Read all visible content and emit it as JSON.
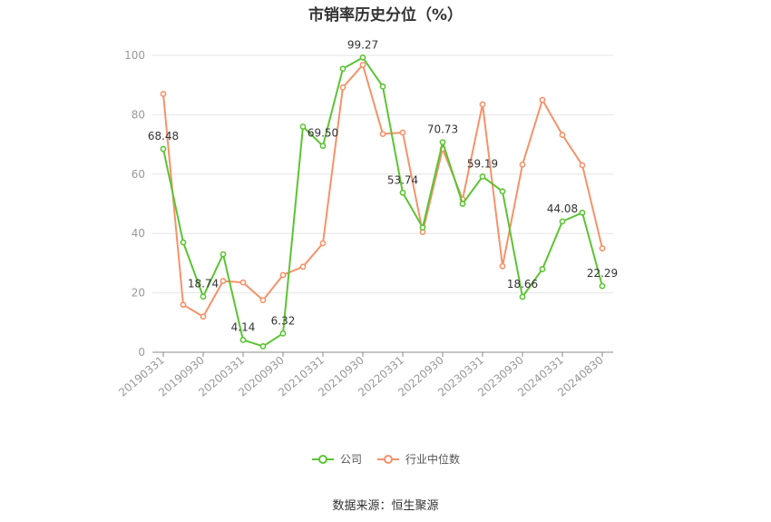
{
  "title": "市销率历史分位（%）",
  "source": "数据来源：恒生聚源",
  "colors": {
    "company": "#5cc433",
    "industry": "#f5926a",
    "grid": "#e6e6e6",
    "axis": "#888888",
    "tick_text": "#999999"
  },
  "chart_data": {
    "type": "line",
    "title": "市销率历史分位（%）",
    "xlabel": "",
    "ylabel": "",
    "ylim": [
      0,
      100
    ],
    "yticks": [
      0,
      20,
      40,
      60,
      80,
      100
    ],
    "grid": true,
    "legend_position": "bottom",
    "x": [
      "20190331",
      "20190630",
      "20190930",
      "20191231",
      "20200331",
      "20200630",
      "20200930",
      "20201231",
      "20210331",
      "20210630",
      "20210930",
      "20211231",
      "20220331",
      "20220630",
      "20220930",
      "20221231",
      "20230331",
      "20230630",
      "20230930",
      "20231231",
      "20240331",
      "20240630",
      "20240830"
    ],
    "x_tick_labels": [
      "20190331",
      "20190930",
      "20200331",
      "20200930",
      "20210331",
      "20210930",
      "20220331",
      "20220930",
      "20230331",
      "20230930",
      "20240331",
      "20240830"
    ],
    "series": [
      {
        "name": "公司",
        "values": [
          68.48,
          37.0,
          18.74,
          33.0,
          4.14,
          2.0,
          6.32,
          76.0,
          69.5,
          95.5,
          99.27,
          89.5,
          53.74,
          42.0,
          70.73,
          50.0,
          59.19,
          54.2,
          18.66,
          28.0,
          44.08,
          47.0,
          22.29
        ],
        "labels": {
          "0": "68.48",
          "2": "18.74",
          "4": "4.14",
          "6": "6.32",
          "8": "69.50",
          "10": "99.27",
          "12": "53.74",
          "14": "70.73",
          "16": "59.19",
          "18": "18.66",
          "20": "44.08",
          "22": "22.29"
        }
      },
      {
        "name": "行业中位数",
        "values": [
          87.0,
          16.0,
          12.0,
          24.0,
          23.5,
          17.5,
          26.0,
          28.8,
          36.7,
          89.2,
          96.8,
          73.5,
          74.0,
          40.5,
          68.5,
          51.5,
          83.5,
          29.0,
          63.2,
          85.0,
          73.2,
          63.0,
          35.0
        ]
      }
    ]
  }
}
